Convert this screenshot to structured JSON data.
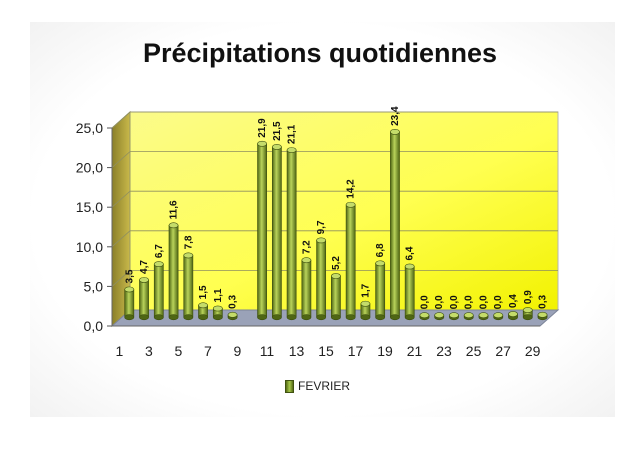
{
  "chart_data": {
    "type": "bar",
    "title": "Précipitations quotidiennes",
    "xlabel": "",
    "ylabel": "",
    "ylim": [
      0,
      25
    ],
    "yticks": [
      "0,0",
      "5,0",
      "10,0",
      "15,0",
      "20,0",
      "25,0"
    ],
    "x_tick_labels": [
      "1",
      "3",
      "5",
      "7",
      "9",
      "11",
      "13",
      "15",
      "17",
      "19",
      "21",
      "23",
      "25",
      "27",
      "29"
    ],
    "categories": [
      1,
      2,
      3,
      4,
      5,
      6,
      7,
      8,
      9,
      10,
      11,
      12,
      13,
      14,
      15,
      16,
      17,
      18,
      19,
      20,
      21,
      22,
      23,
      24,
      25,
      26,
      27,
      28,
      29
    ],
    "series": [
      {
        "name": "FEVRIER",
        "values": [
          3.5,
          4.7,
          6.7,
          11.6,
          7.8,
          1.5,
          1.1,
          0.3,
          null,
          21.9,
          21.5,
          21.1,
          7.2,
          9.7,
          5.2,
          14.2,
          1.7,
          6.8,
          23.4,
          6.4,
          0.0,
          0.0,
          0.0,
          0.0,
          0.0,
          0.0,
          0.4,
          0.9,
          0.3
        ],
        "labels": [
          "3,5",
          "4,7",
          "6,7",
          "11,6",
          "7,8",
          "1,5",
          "1,1",
          "0,3",
          "",
          "21,9",
          "21,5",
          "21,1",
          "7,2",
          "9,7",
          "5,2",
          "14,2",
          "1,7",
          "6,8",
          "23,4",
          "6,4",
          "0,0",
          "0,0",
          "0,0",
          "0,0",
          "0,0",
          "0,0",
          "0,4",
          "0,9",
          "0,3"
        ]
      }
    ],
    "legend_position": "bottom",
    "grid": true,
    "colors": {
      "bar": "#7a9a26",
      "bar_highlight": "#c4dc6a",
      "back_wall": "#ffff80",
      "floor": "#9aa2b8"
    }
  }
}
